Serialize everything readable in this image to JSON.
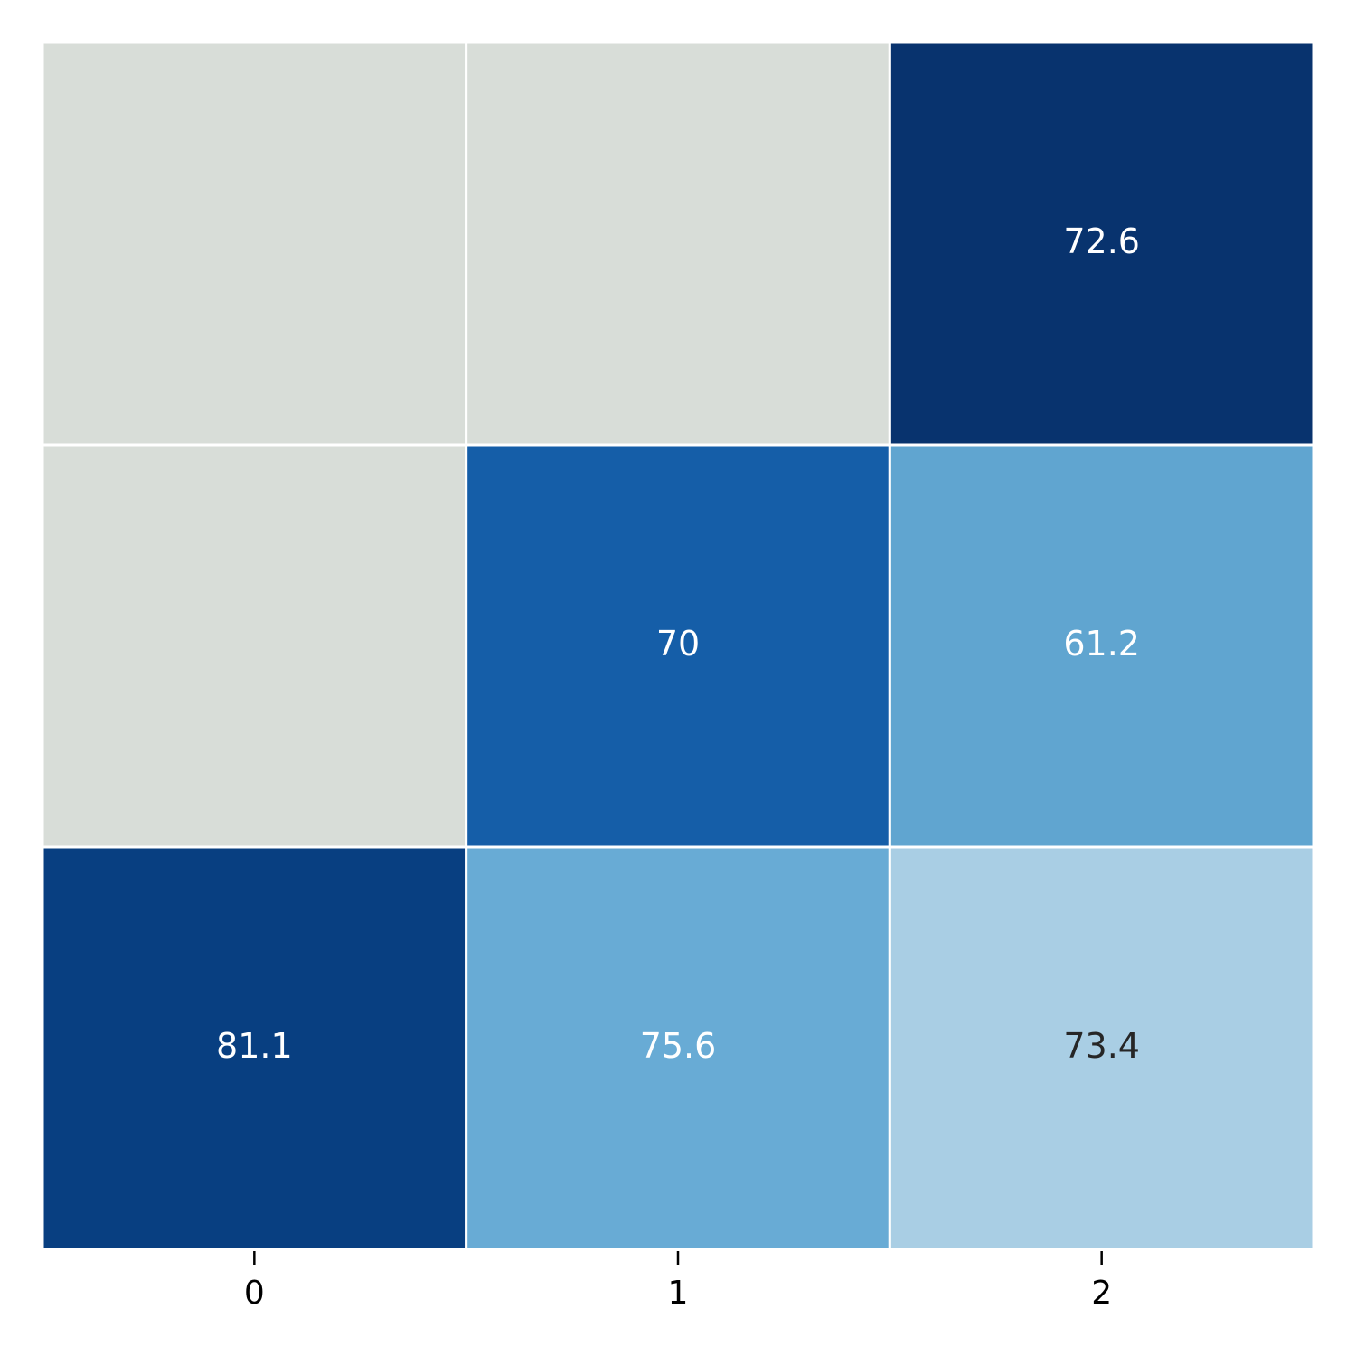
{
  "chart_data": {
    "type": "heatmap",
    "categories": [
      "0",
      "1",
      "2"
    ],
    "values": [
      [
        null,
        null,
        72.6
      ],
      [
        null,
        70,
        61.2
      ],
      [
        81.1,
        75.6,
        73.4
      ]
    ],
    "colors": [
      [
        null,
        null,
        "#08336e"
      ],
      [
        null,
        "#155ea8",
        "#60a5d0"
      ],
      [
        "#083f81",
        "#68abd5",
        "#a9cee4"
      ]
    ],
    "mask_color": "#d8ddd8"
  }
}
